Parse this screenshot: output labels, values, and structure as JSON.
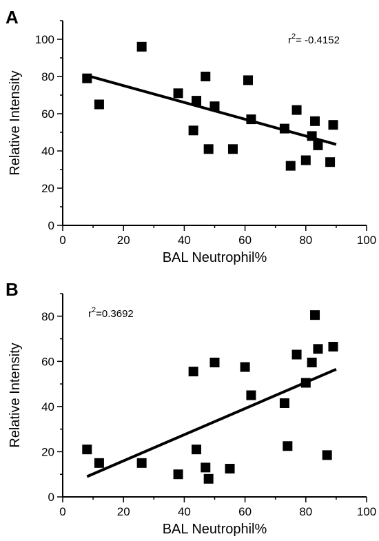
{
  "chart_data": [
    {
      "type": "scatter",
      "panel_label": "A",
      "xlabel": "BAL Neutrophil%",
      "ylabel": "Relative Intensity",
      "xlim": [
        0,
        100
      ],
      "ylim": [
        0,
        110
      ],
      "x_ticks": [
        0,
        20,
        40,
        60,
        80,
        100
      ],
      "y_ticks": [
        0,
        20,
        40,
        60,
        80,
        100
      ],
      "annotation": {
        "prefix": "r",
        "superscript": "2",
        "suffix": "= -0.4152"
      },
      "points": [
        {
          "x": 8,
          "y": 79
        },
        {
          "x": 12,
          "y": 65
        },
        {
          "x": 26,
          "y": 96
        },
        {
          "x": 38,
          "y": 71
        },
        {
          "x": 43,
          "y": 51
        },
        {
          "x": 44,
          "y": 67
        },
        {
          "x": 47,
          "y": 80
        },
        {
          "x": 48,
          "y": 41
        },
        {
          "x": 50,
          "y": 64
        },
        {
          "x": 56,
          "y": 41
        },
        {
          "x": 61,
          "y": 78
        },
        {
          "x": 62,
          "y": 57
        },
        {
          "x": 73,
          "y": 52
        },
        {
          "x": 75,
          "y": 32
        },
        {
          "x": 77,
          "y": 62
        },
        {
          "x": 80,
          "y": 35
        },
        {
          "x": 82,
          "y": 48
        },
        {
          "x": 83,
          "y": 56
        },
        {
          "x": 84,
          "y": 43
        },
        {
          "x": 88,
          "y": 34
        },
        {
          "x": 89,
          "y": 54
        }
      ],
      "fit_line": {
        "x": [
          8,
          90
        ],
        "y": [
          80.5,
          43.5
        ]
      }
    },
    {
      "type": "scatter",
      "panel_label": "B",
      "xlabel": "BAL Neutrophil%",
      "ylabel": "Relative Intensity",
      "xlim": [
        0,
        100
      ],
      "ylim": [
        0,
        90
      ],
      "x_ticks": [
        0,
        20,
        40,
        60,
        80,
        100
      ],
      "y_ticks": [
        0,
        20,
        40,
        60,
        80
      ],
      "annotation": {
        "prefix": "r",
        "superscript": "2",
        "suffix": "=0.3692"
      },
      "points": [
        {
          "x": 8,
          "y": 21
        },
        {
          "x": 12,
          "y": 15
        },
        {
          "x": 26,
          "y": 15
        },
        {
          "x": 38,
          "y": 10
        },
        {
          "x": 43,
          "y": 55.5
        },
        {
          "x": 44,
          "y": 21
        },
        {
          "x": 47,
          "y": 13
        },
        {
          "x": 48,
          "y": 8
        },
        {
          "x": 50,
          "y": 59.5
        },
        {
          "x": 55,
          "y": 12.5
        },
        {
          "x": 60,
          "y": 57.5
        },
        {
          "x": 62,
          "y": 45
        },
        {
          "x": 73,
          "y": 41.5
        },
        {
          "x": 74,
          "y": 22.5
        },
        {
          "x": 77,
          "y": 63
        },
        {
          "x": 80,
          "y": 50.5
        },
        {
          "x": 82,
          "y": 59.5
        },
        {
          "x": 83,
          "y": 80.5
        },
        {
          "x": 84,
          "y": 65.5
        },
        {
          "x": 87,
          "y": 18.5
        },
        {
          "x": 89,
          "y": 66.5
        }
      ],
      "fit_line": {
        "x": [
          8,
          90
        ],
        "y": [
          9,
          56.5
        ]
      }
    }
  ]
}
